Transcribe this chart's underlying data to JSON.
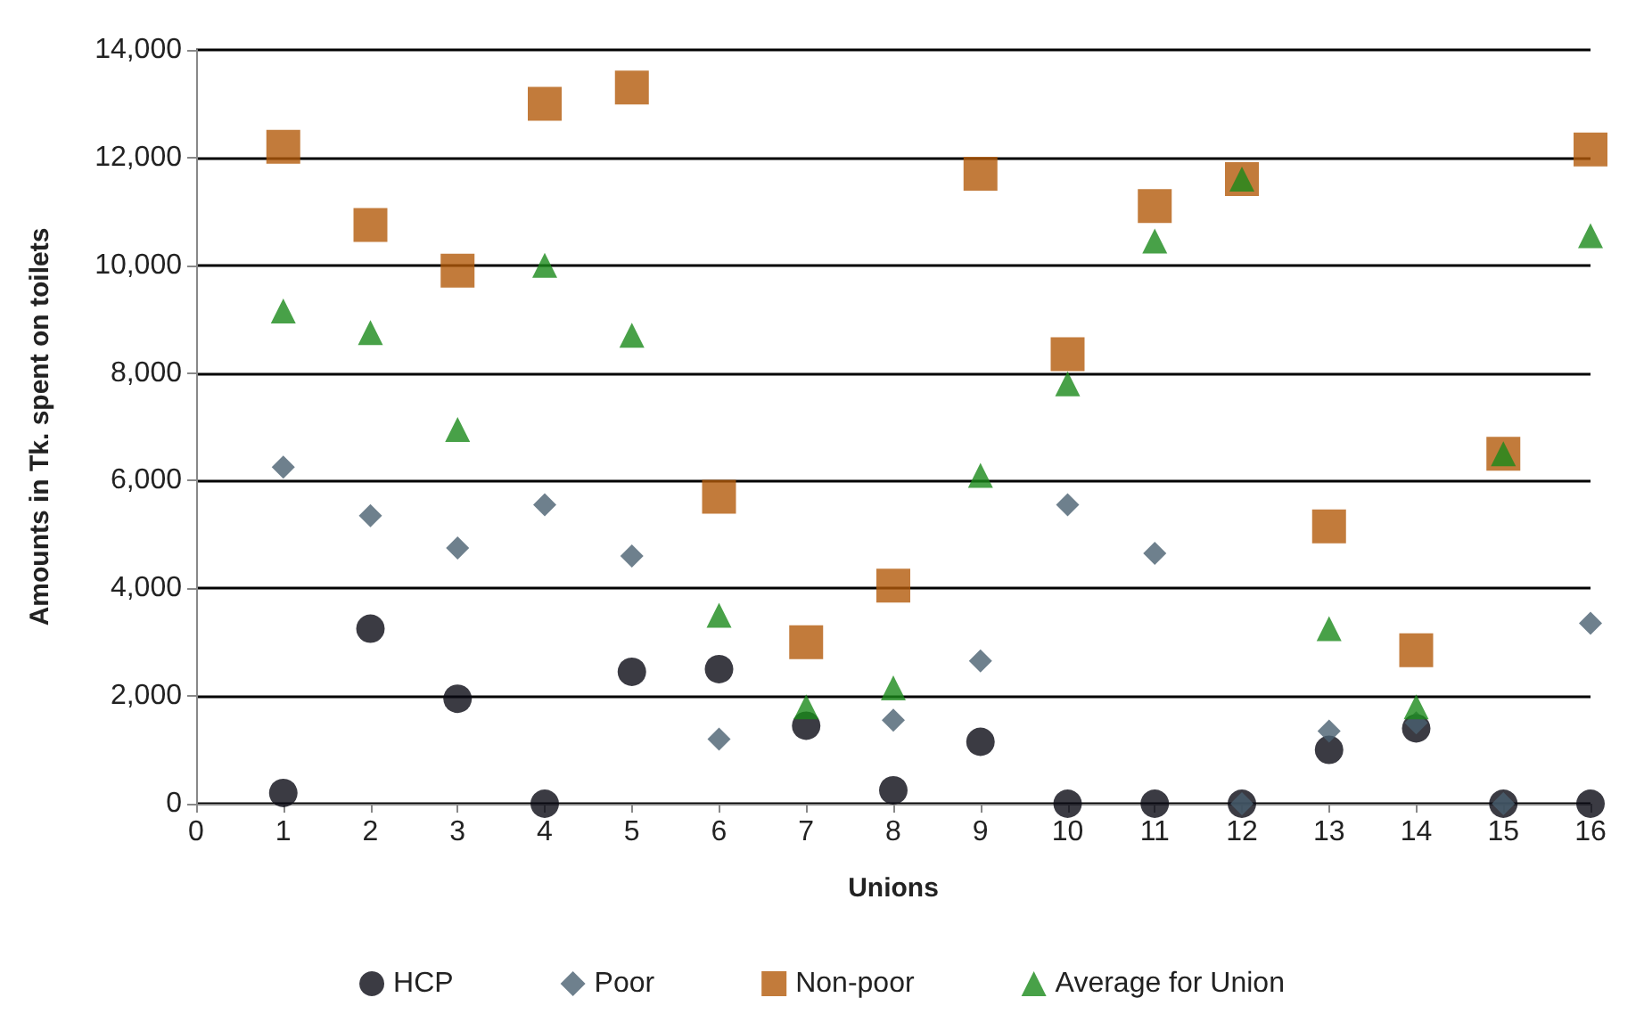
{
  "chart_data": {
    "type": "scatter",
    "xlabel": "Unions",
    "ylabel": "Amounts in Tk. spent on toilets",
    "x": [
      1,
      2,
      3,
      4,
      5,
      6,
      7,
      8,
      9,
      10,
      11,
      12,
      13,
      14,
      15,
      16
    ],
    "series": [
      {
        "name": "HCP",
        "color": "#0a0a14",
        "marker": "circle",
        "values": [
          200,
          3250,
          1950,
          0,
          2450,
          2500,
          1450,
          250,
          1150,
          0,
          0,
          0,
          1000,
          1400,
          0,
          0
        ]
      },
      {
        "name": "Poor",
        "color": "#4a6070",
        "marker": "diamond",
        "values": [
          6250,
          5350,
          4750,
          5550,
          4600,
          1200,
          null,
          1550,
          2650,
          5550,
          4650,
          0,
          1350,
          1500,
          0,
          3350
        ]
      },
      {
        "name": "Non-poor",
        "color": "#b35a0a",
        "marker": "square",
        "values": [
          12200,
          10750,
          9900,
          13000,
          13300,
          5700,
          3000,
          4050,
          11700,
          8350,
          11100,
          11600,
          5150,
          2850,
          6500,
          12150
        ]
      },
      {
        "name": "Average for Union",
        "color": "#1a8a1a",
        "marker": "triangle",
        "values": [
          9150,
          8750,
          6950,
          10000,
          8700,
          3500,
          1800,
          2150,
          6100,
          7800,
          10450,
          11600,
          3250,
          1800,
          6500,
          10550
        ]
      }
    ],
    "xlim": [
      0,
      16
    ],
    "xticks": [
      0,
      1,
      2,
      3,
      4,
      5,
      6,
      7,
      8,
      9,
      10,
      11,
      12,
      13,
      14,
      15,
      16
    ],
    "ylim": [
      0,
      14000
    ],
    "yticks": [
      0,
      {
        "value": 2000,
        "label": "2,000"
      },
      {
        "value": 4000,
        "label": "4,000"
      },
      {
        "value": 6000,
        "label": "6,000"
      },
      {
        "value": 8000,
        "label": "8,000"
      },
      {
        "value": 10000,
        "label": "10,000"
      },
      {
        "value": 12000,
        "label": "12,000"
      },
      {
        "value": 14000,
        "label": "14,000"
      }
    ],
    "grid": "y",
    "legend": "bottom"
  }
}
